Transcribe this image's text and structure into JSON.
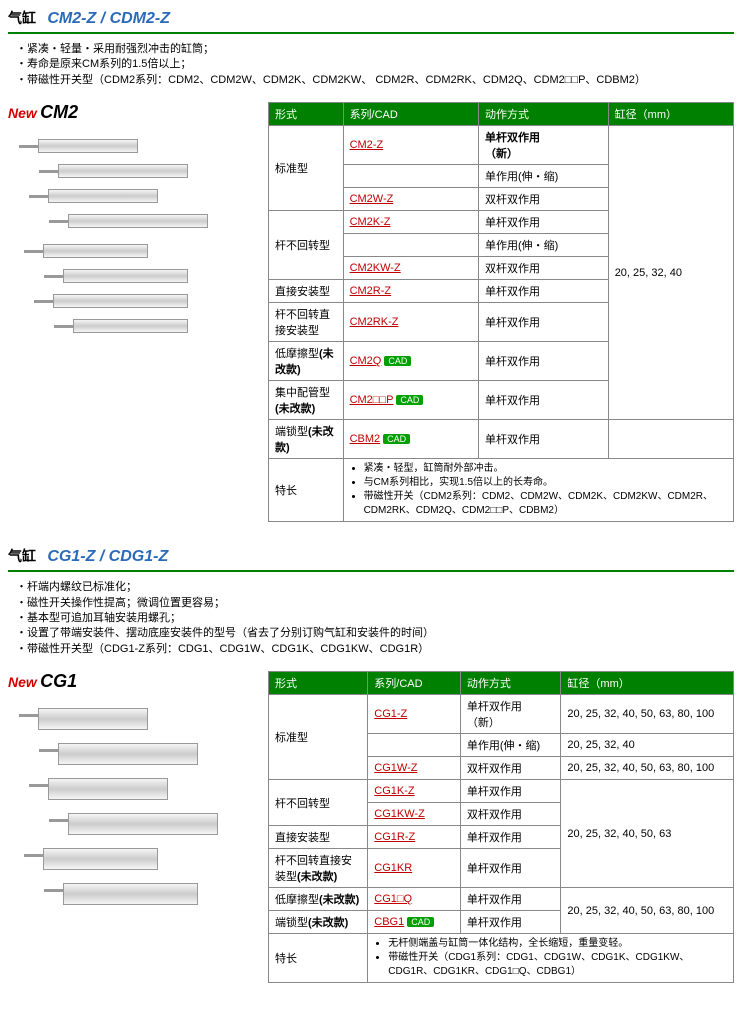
{
  "sections": [
    {
      "label": "气缸",
      "model": "CM2-Z / CDM2-Z",
      "notes": "・紧凑・轻量・采用耐强烈冲击的缸筒；\n・寿命是原来CM系列的1.5倍以上；\n・带磁性开关型（CDM2系列：CDM2、CDM2W、CDM2K、CDM2KW、 CDM2R、CDM2RK、CDM2Q、CDM2□□P、CDBM2）",
      "badge_new": "New",
      "badge_model": "CM2",
      "headers": [
        "形式",
        "系列/CAD",
        "动作方式",
        "缸径（mm）"
      ],
      "rows": [
        {
          "form": "标准型",
          "formspan": 3,
          "series": "CM2-Z",
          "cad": false,
          "action": "单杆双作用\n（新）",
          "bore": "20, 25, 32, 40",
          "borespan": 10,
          "actionBold": true
        },
        {
          "series": "",
          "action": "单作用(伸・缩)"
        },
        {
          "series": "CM2W-Z",
          "action": "双杆双作用"
        },
        {
          "form": "杆不回转型",
          "formspan": 3,
          "series": "CM2K-Z",
          "action": "单杆双作用"
        },
        {
          "series": "",
          "action": "单作用(伸・缩)"
        },
        {
          "series": "CM2KW-Z",
          "action": "双杆双作用"
        },
        {
          "form": "直接安装型",
          "series": "CM2R-Z",
          "action": "单杆双作用"
        },
        {
          "form": "杆不回转直接安装型",
          "series": "CM2RK-Z",
          "action": "单杆双作用"
        },
        {
          "form": "低摩擦型(未改款)",
          "formBold": true,
          "series": "CM2Q",
          "cad": true,
          "action": "单杆双作用"
        },
        {
          "form": "集中配管型(未改款)",
          "formBold": true,
          "series": "CM2□□P",
          "cad": true,
          "action": "单杆双作用"
        },
        {
          "form": "端锁型(未改款)",
          "formBold": true,
          "series": "CBM2",
          "cad": true,
          "action": "单杆双作用",
          "bore": ""
        }
      ],
      "feature_label": "特长",
      "features": [
        "紧凑・轻型，缸筒耐外部冲击。",
        "与CM系列相比，实现1.5倍以上的长寿命。",
        "带磁性开关（CDM2系列：CDM2、CDM2W、CDM2K、CDM2KW、CDM2R、CDM2RK、CDM2Q、CDM2□□P、CDBM2）"
      ]
    },
    {
      "label": "气缸",
      "model": "CG1-Z / CDG1-Z",
      "notes": "・杆端内螺纹已标准化；\n・磁性开关操作性提高；微调位置更容易；\n・基本型可追加耳轴安装用螺孔；\n・设置了带端安装件、摆动底座安装件的型号（省去了分别订购气缸和安装件的时间）\n・带磁性开关型（CDG1-Z系列：CDG1、CDG1W、CDG1K、CDG1KW、CDG1R）",
      "badge_new": "New",
      "badge_model": "CG1",
      "headers": [
        "形式",
        "系列/CAD",
        "动作方式",
        "缸径（mm）"
      ],
      "rows": [
        {
          "form": "标准型",
          "formspan": 3,
          "series": "CG1-Z",
          "action": "单杆双作用\n（新）",
          "bore": "20, 25, 32, 40, 50, 63, 80, 100"
        },
        {
          "series": "",
          "action": "单作用(伸・缩)",
          "bore": "20, 25, 32, 40"
        },
        {
          "series": "CG1W-Z",
          "action": "双杆双作用",
          "bore": "20, 25, 32, 40, 50, 63, 80, 100"
        },
        {
          "form": "杆不回转型",
          "formspan": 2,
          "series": "CG1K-Z",
          "action": "单杆双作用",
          "bore": "20, 25, 32, 40, 50, 63",
          "borespan": 4
        },
        {
          "series": "CG1KW-Z",
          "action": "双杆双作用"
        },
        {
          "form": "直接安装型",
          "series": "CG1R-Z",
          "action": "单杆双作用"
        },
        {
          "form": "杆不回转直接安装型(未改款)",
          "formBold": true,
          "series": "CG1KR",
          "action": "单杆双作用"
        },
        {
          "form": "低摩擦型(未改款)",
          "formBold": true,
          "series": "CG1□Q",
          "action": "单杆双作用",
          "bore": "20, 25, 32, 40, 50, 63, 80, 100",
          "borespan": 2
        },
        {
          "form": "端锁型(未改款)",
          "formBold": true,
          "series": "CBG1",
          "cad": true,
          "action": "单杆双作用"
        }
      ],
      "feature_label": "特长",
      "features": [
        "无杆侧端盖与缸筒一体化结构，全长缩短，重量变轻。",
        "带磁性开关（CDG1系列：CDG1、CDG1W、CDG1K、CDG1KW、CDG1R、CDG1KR、CDG1□Q、CDBG1）"
      ]
    }
  ],
  "cad_label": "CAD",
  "cyl_layout": [
    {
      "t": 10,
      "l": 30,
      "w": 100
    },
    {
      "t": 35,
      "l": 50,
      "w": 130
    },
    {
      "t": 60,
      "l": 40,
      "w": 110
    },
    {
      "t": 85,
      "l": 60,
      "w": 140
    },
    {
      "t": 115,
      "l": 35,
      "w": 105
    },
    {
      "t": 140,
      "l": 55,
      "w": 125
    },
    {
      "t": 165,
      "l": 45,
      "w": 135
    },
    {
      "t": 190,
      "l": 65,
      "w": 115
    }
  ],
  "cyl_layout2": [
    {
      "t": 10,
      "l": 30,
      "w": 110,
      "h": 22
    },
    {
      "t": 45,
      "l": 50,
      "w": 140,
      "h": 22
    },
    {
      "t": 80,
      "l": 40,
      "w": 120,
      "h": 22
    },
    {
      "t": 115,
      "l": 60,
      "w": 150,
      "h": 22
    },
    {
      "t": 150,
      "l": 35,
      "w": 115,
      "h": 22
    },
    {
      "t": 185,
      "l": 55,
      "w": 135,
      "h": 22
    }
  ]
}
